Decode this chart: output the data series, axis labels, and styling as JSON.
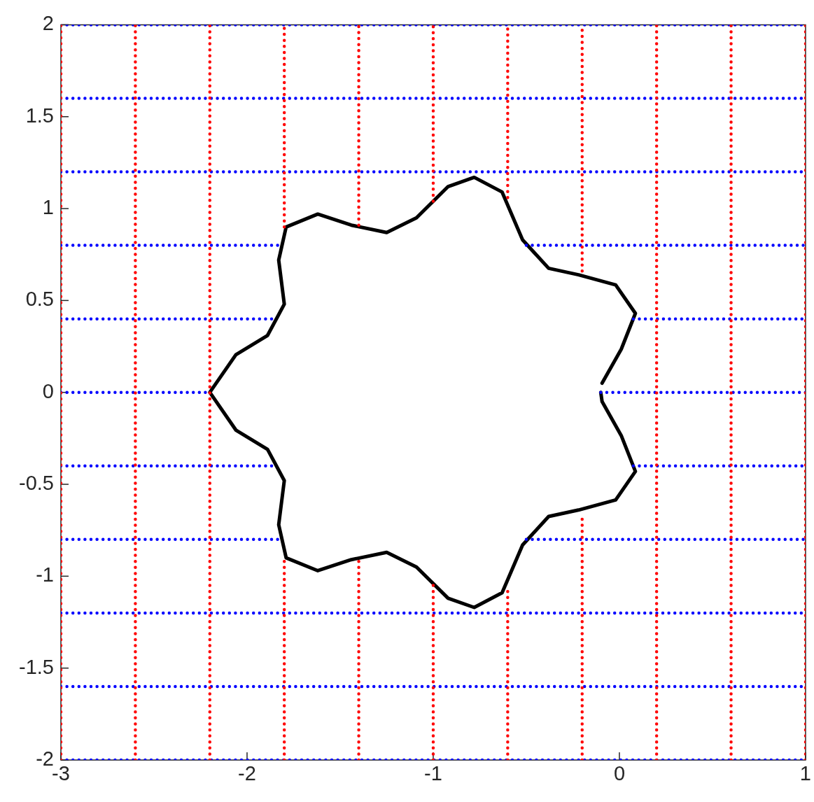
{
  "chart_data": {
    "type": "line",
    "xlim": [
      -3,
      1
    ],
    "xticks": [
      -3,
      -2,
      -1,
      0,
      1
    ],
    "ylim": [
      -2,
      2
    ],
    "yticks": [
      -2,
      -1.5,
      -1,
      -0.5,
      0,
      0.5,
      1,
      1.5,
      2
    ],
    "grid": false,
    "legend": false,
    "marker": "none",
    "series": [
      {
        "color": "#ff0000",
        "line_style": "dotted",
        "x": [
          -3,
          -3
        ],
        "values": [
          -2,
          2
        ]
      },
      {
        "color": "#ff0000",
        "line_style": "dotted",
        "x": [
          -2.6,
          -2.6
        ],
        "values": [
          -2,
          2
        ]
      },
      {
        "color": "#ff0000",
        "line_style": "dotted",
        "x": [
          -2.2,
          -2.2
        ],
        "values": [
          -2,
          2
        ]
      },
      {
        "color": "#ff0000",
        "line_style": "dotted",
        "x": [
          -1.8,
          -1.8
        ],
        "values": [
          0.9,
          2
        ]
      },
      {
        "color": "#ff0000",
        "line_style": "dotted",
        "x": [
          -1.8,
          -1.8
        ],
        "values": [
          -2,
          -0.9
        ]
      },
      {
        "color": "#ff0000",
        "line_style": "dotted",
        "x": [
          -1.4,
          -1.4
        ],
        "values": [
          0.91,
          2
        ]
      },
      {
        "color": "#ff0000",
        "line_style": "dotted",
        "x": [
          -1.4,
          -1.4
        ],
        "values": [
          -2,
          -0.91
        ]
      },
      {
        "color": "#ff0000",
        "line_style": "dotted",
        "x": [
          -1,
          -1
        ],
        "values": [
          1.04,
          2
        ]
      },
      {
        "color": "#ff0000",
        "line_style": "dotted",
        "x": [
          -1,
          -1
        ],
        "values": [
          -2,
          -1.04
        ]
      },
      {
        "color": "#ff0000",
        "line_style": "dotted",
        "x": [
          -0.6,
          -0.6
        ],
        "values": [
          1.06,
          2
        ]
      },
      {
        "color": "#ff0000",
        "line_style": "dotted",
        "x": [
          -0.6,
          -0.6
        ],
        "values": [
          -2,
          -1.06
        ]
      },
      {
        "color": "#ff0000",
        "line_style": "dotted",
        "x": [
          -0.2,
          -0.2
        ],
        "values": [
          0.66,
          2
        ]
      },
      {
        "color": "#ff0000",
        "line_style": "dotted",
        "x": [
          -0.2,
          -0.2
        ],
        "values": [
          -2,
          -0.66
        ]
      },
      {
        "color": "#ff0000",
        "line_style": "dotted",
        "x": [
          0.2,
          0.2
        ],
        "values": [
          -2,
          2
        ]
      },
      {
        "color": "#ff0000",
        "line_style": "dotted",
        "x": [
          0.6,
          0.6
        ],
        "values": [
          -2,
          2
        ]
      },
      {
        "color": "#ff0000",
        "line_style": "dotted",
        "x": [
          1,
          1
        ],
        "values": [
          -2,
          2
        ]
      },
      {
        "color": "#0000ff",
        "line_style": "dotted",
        "x": [
          -3,
          1
        ],
        "values": [
          -2,
          -2
        ]
      },
      {
        "color": "#0000ff",
        "line_style": "dotted",
        "x": [
          -3,
          1
        ],
        "values": [
          -1.6,
          -1.6
        ]
      },
      {
        "color": "#0000ff",
        "line_style": "dotted",
        "x": [
          -3,
          1
        ],
        "values": [
          -1.2,
          -1.2
        ]
      },
      {
        "color": "#0000ff",
        "line_style": "dotted",
        "x": [
          -3,
          -1.81
        ],
        "values": [
          -0.8,
          -0.8
        ]
      },
      {
        "color": "#0000ff",
        "line_style": "dotted",
        "x": [
          -0.5,
          1
        ],
        "values": [
          -0.8,
          -0.8
        ]
      },
      {
        "color": "#0000ff",
        "line_style": "dotted",
        "x": [
          -3,
          -1.84
        ],
        "values": [
          -0.4,
          -0.4
        ]
      },
      {
        "color": "#0000ff",
        "line_style": "dotted",
        "x": [
          0.075,
          1
        ],
        "values": [
          -0.4,
          -0.4
        ]
      },
      {
        "color": "#0000ff",
        "line_style": "dotted",
        "x": [
          -3,
          -2.2
        ],
        "values": [
          0,
          0
        ]
      },
      {
        "color": "#0000ff",
        "line_style": "dotted",
        "x": [
          -0.1,
          1
        ],
        "values": [
          0,
          0
        ]
      },
      {
        "color": "#0000ff",
        "line_style": "dotted",
        "x": [
          -3,
          -1.84
        ],
        "values": [
          0.4,
          0.4
        ]
      },
      {
        "color": "#0000ff",
        "line_style": "dotted",
        "x": [
          0.075,
          1
        ],
        "values": [
          0.4,
          0.4
        ]
      },
      {
        "color": "#0000ff",
        "line_style": "dotted",
        "x": [
          -3,
          -1.81
        ],
        "values": [
          0.8,
          0.8
        ]
      },
      {
        "color": "#0000ff",
        "line_style": "dotted",
        "x": [
          -0.5,
          1
        ],
        "values": [
          0.8,
          0.8
        ]
      },
      {
        "color": "#0000ff",
        "line_style": "dotted",
        "x": [
          -3,
          1
        ],
        "values": [
          1.2,
          1.2
        ]
      },
      {
        "color": "#0000ff",
        "line_style": "dotted",
        "x": [
          -3,
          1
        ],
        "values": [
          1.6,
          1.6
        ]
      },
      {
        "color": "#0000ff",
        "line_style": "dotted",
        "x": [
          -3,
          1
        ],
        "values": [
          2,
          2
        ]
      },
      {
        "color": "#000000",
        "x": [
          -0.093,
          0.01,
          0.086,
          -0.02,
          -0.22,
          -0.38,
          -0.52,
          -0.63,
          -0.78,
          -0.92,
          -1.09,
          -1.25,
          -1.44,
          -1.62,
          -1.79,
          -1.83,
          -1.8,
          -1.89,
          -2.06,
          -2.2,
          -2.06,
          -1.89,
          -1.8,
          -1.83,
          -1.79,
          -1.62,
          -1.44,
          -1.25,
          -1.09,
          -0.92,
          -0.78,
          -0.63,
          -0.52,
          -0.38,
          -0.22,
          -0.02,
          0.086,
          0.01,
          -0.093,
          -0.1
        ],
        "values": [
          0.05,
          0.235,
          0.43,
          0.585,
          0.64,
          0.675,
          0.83,
          1.09,
          1.17,
          1.12,
          0.95,
          0.87,
          0.91,
          0.97,
          0.9,
          0.72,
          0.48,
          0.31,
          0.205,
          0,
          -0.205,
          -0.31,
          -0.48,
          -0.72,
          -0.9,
          -0.97,
          -0.91,
          -0.87,
          -0.95,
          -1.12,
          -1.17,
          -1.09,
          -0.83,
          -0.675,
          -0.64,
          -0.585,
          -0.43,
          -0.235,
          -0.05,
          0
        ]
      }
    ]
  }
}
